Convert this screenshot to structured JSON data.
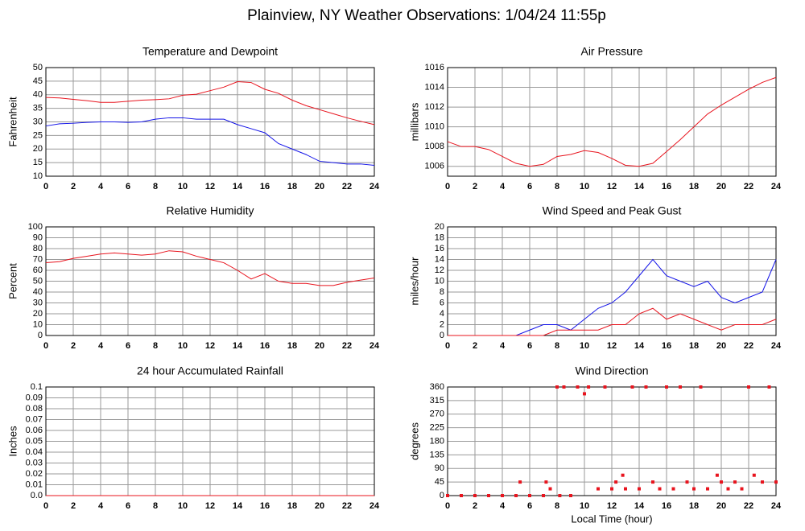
{
  "title": "Plainview, NY Weather Observations: 1/04/24 11:55p",
  "chart_data": [
    {
      "type": "line",
      "title": "Temperature and Dewpoint",
      "y_label": "Fahrenheit",
      "x": [
        0,
        1,
        2,
        3,
        4,
        5,
        6,
        7,
        8,
        9,
        10,
        11,
        12,
        13,
        14,
        15,
        16,
        17,
        18,
        19,
        20,
        21,
        22,
        23,
        24
      ],
      "series": [
        {
          "color": "#e8141e",
          "values": [
            39,
            38.8,
            38.3,
            37.8,
            37.2,
            37.2,
            37.6,
            38,
            38.2,
            38.5,
            39.8,
            40.2,
            41.5,
            42.8,
            44.8,
            44.5,
            42,
            40.5,
            38,
            36,
            34.5,
            33,
            31.5,
            30.2,
            29
          ]
        },
        {
          "color": "#1414e8",
          "values": [
            28.5,
            29.3,
            29.5,
            29.8,
            30,
            30,
            29.8,
            30,
            31,
            31.5,
            31.5,
            31,
            31,
            31,
            29,
            27.5,
            26,
            22,
            20,
            18,
            15.5,
            15,
            14.5,
            14.5,
            14
          ]
        }
      ],
      "xlim": [
        0,
        24
      ],
      "xticks": [
        0,
        2,
        4,
        6,
        8,
        10,
        12,
        14,
        16,
        18,
        20,
        22,
        24
      ],
      "ylim": [
        10,
        50
      ],
      "yticks": [
        10,
        15,
        20,
        25,
        30,
        35,
        40,
        45,
        50
      ],
      "grid": true
    },
    {
      "type": "line",
      "title": "Air Pressure",
      "y_label": "millibars",
      "x": [
        0,
        1,
        2,
        3,
        4,
        5,
        6,
        7,
        8,
        9,
        10,
        11,
        12,
        13,
        14,
        15,
        16,
        17,
        18,
        19,
        20,
        21,
        22,
        23,
        24
      ],
      "series": [
        {
          "color": "#e8141e",
          "values": [
            1008.5,
            1008,
            1008,
            1007.7,
            1007,
            1006.3,
            1006,
            1006.2,
            1007,
            1007.2,
            1007.6,
            1007.4,
            1006.8,
            1006.1,
            1006,
            1006.3,
            1007.5,
            1008.7,
            1010,
            1011.3,
            1012.2,
            1013,
            1013.8,
            1014.5,
            1015
          ]
        }
      ],
      "xlim": [
        0,
        24
      ],
      "xticks": [
        0,
        2,
        4,
        6,
        8,
        10,
        12,
        14,
        16,
        18,
        20,
        22,
        24
      ],
      "ylim": [
        1005,
        1016
      ],
      "yticks": [
        1006,
        1008,
        1010,
        1012,
        1014,
        1016
      ],
      "grid": true
    },
    {
      "type": "line",
      "title": "Relative Humidity",
      "y_label": "Percent",
      "x": [
        0,
        1,
        2,
        3,
        4,
        5,
        6,
        7,
        8,
        9,
        10,
        11,
        12,
        13,
        14,
        15,
        16,
        17,
        18,
        19,
        20,
        21,
        22,
        23,
        24
      ],
      "series": [
        {
          "color": "#e8141e",
          "values": [
            67,
            68,
            71,
            73,
            75,
            76,
            75,
            74,
            75,
            78,
            77,
            73,
            70,
            67,
            60,
            52,
            57,
            50,
            48,
            48,
            46,
            46,
            49,
            51,
            53
          ]
        }
      ],
      "xlim": [
        0,
        24
      ],
      "xticks": [
        0,
        2,
        4,
        6,
        8,
        10,
        12,
        14,
        16,
        18,
        20,
        22,
        24
      ],
      "ylim": [
        0,
        100
      ],
      "yticks": [
        0,
        10,
        20,
        30,
        40,
        50,
        60,
        70,
        80,
        90,
        100
      ],
      "grid": true
    },
    {
      "type": "line",
      "title": "Wind Speed and Peak Gust",
      "y_label": "miles/hour",
      "x": [
        0,
        1,
        2,
        3,
        4,
        5,
        6,
        7,
        8,
        9,
        10,
        11,
        12,
        13,
        14,
        15,
        16,
        17,
        18,
        19,
        20,
        21,
        22,
        23,
        24
      ],
      "series": [
        {
          "color": "#1414e8",
          "values": [
            0,
            0,
            0,
            0,
            0,
            0,
            1,
            2,
            2,
            1,
            3,
            5,
            6,
            8,
            11,
            14,
            11,
            10,
            9,
            10,
            7,
            6,
            7,
            8,
            14
          ]
        },
        {
          "color": "#e8141e",
          "values": [
            0,
            0,
            0,
            0,
            0,
            0,
            0,
            0,
            1,
            1,
            1,
            1,
            2,
            2,
            4,
            5,
            3,
            4,
            3,
            2,
            1,
            2,
            2,
            2,
            3
          ]
        }
      ],
      "xlim": [
        0,
        24
      ],
      "xticks": [
        0,
        2,
        4,
        6,
        8,
        10,
        12,
        14,
        16,
        18,
        20,
        22,
        24
      ],
      "ylim": [
        0,
        20
      ],
      "yticks": [
        0,
        2,
        4,
        6,
        8,
        10,
        12,
        14,
        16,
        18,
        20
      ],
      "grid": true
    },
    {
      "type": "line",
      "title": "24 hour Accumulated Rainfall",
      "y_label": "Inches",
      "x": [
        0,
        24
      ],
      "series": [
        {
          "color": "#e8141e",
          "values": [
            0,
            0
          ]
        }
      ],
      "xlim": [
        0,
        24
      ],
      "xticks": [
        0,
        2,
        4,
        6,
        8,
        10,
        12,
        14,
        16,
        18,
        20,
        22,
        24
      ],
      "ylim": [
        0,
        0.1
      ],
      "yticks": [
        {
          "value": 0,
          "label": "0.0"
        },
        0.01,
        0.02,
        0.03,
        0.04,
        0.05,
        0.06,
        0.07,
        0.08,
        0.09,
        0.1
      ],
      "grid": true
    },
    {
      "type": "scatter",
      "title": "Wind Direction",
      "y_label": "degrees",
      "x_label": "Local Time (hour)",
      "x": [
        0,
        1,
        2,
        3,
        4,
        5,
        5.3,
        6,
        7,
        7.2,
        7.5,
        8,
        8.2,
        8.5,
        9,
        9.5,
        10,
        10.3,
        11,
        11.5,
        12,
        12.3,
        12.8,
        13,
        13.5,
        14,
        14.5,
        15,
        15.5,
        16,
        16.5,
        17,
        17.5,
        18,
        18.5,
        19,
        19.7,
        20,
        20.5,
        21,
        21.5,
        22,
        22.4,
        23,
        23.5,
        24
      ],
      "series": [
        {
          "color": "#e8141e",
          "values": [
            0,
            0,
            0,
            0,
            0,
            0,
            45,
            0,
            0,
            45,
            22.5,
            360,
            0,
            360,
            0,
            360,
            337.5,
            360,
            22.5,
            360,
            22.5,
            45,
            67.5,
            22.5,
            360,
            22.5,
            360,
            45,
            22.5,
            360,
            22.5,
            360,
            45,
            22.5,
            360,
            22.5,
            67.5,
            45,
            22.5,
            45,
            22.5,
            360,
            67.5,
            45,
            360,
            45
          ]
        }
      ],
      "xlim": [
        0,
        24
      ],
      "xticks": [
        0,
        2,
        4,
        6,
        8,
        10,
        12,
        14,
        16,
        18,
        20,
        22,
        24
      ],
      "ylim": [
        0,
        360
      ],
      "yticks": [
        0,
        45,
        90,
        135,
        180,
        225,
        270,
        315,
        360
      ],
      "grid": true
    }
  ]
}
